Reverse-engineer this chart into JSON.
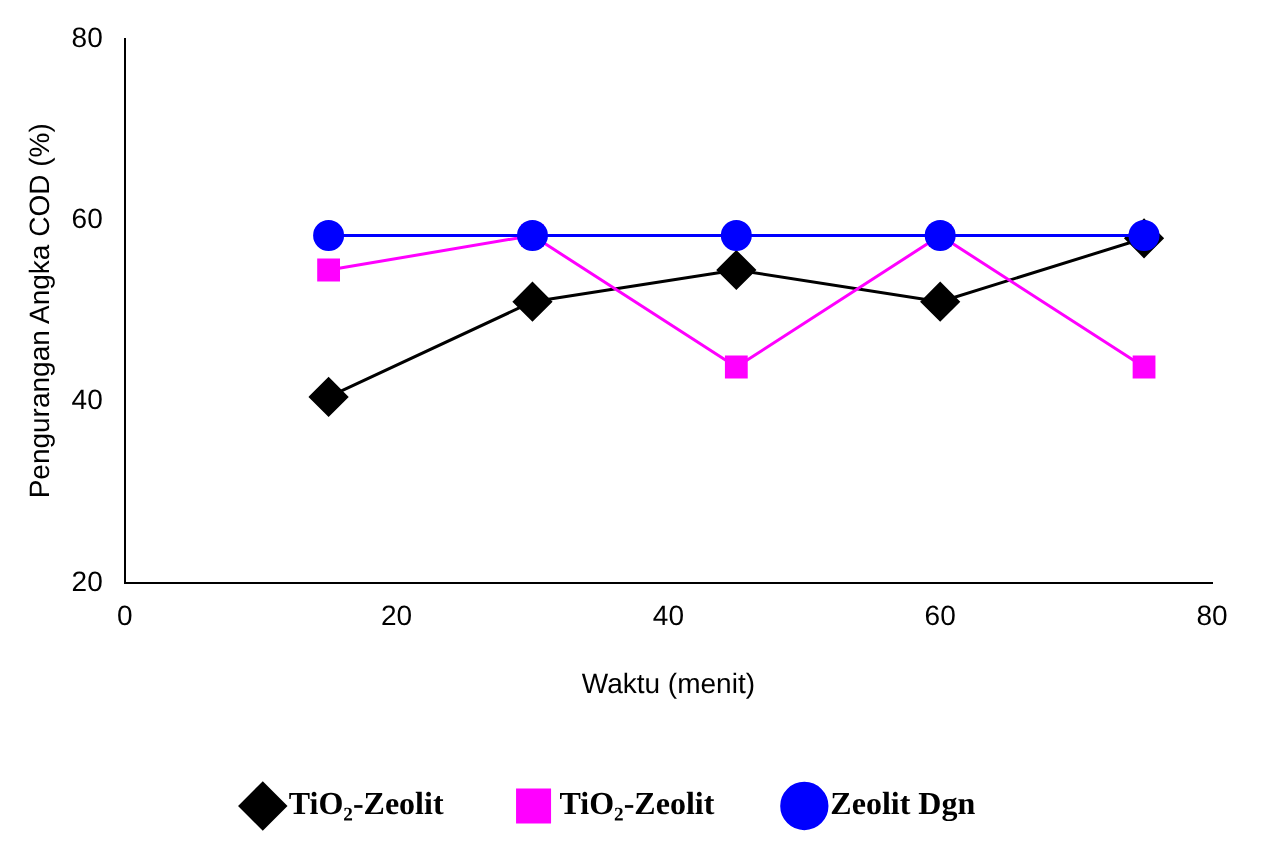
{
  "chart_data": {
    "type": "line",
    "xlabel": "Waktu (menit)",
    "ylabel": "Pengurangan Angka COD (%)",
    "x": [
      15,
      30,
      45,
      60,
      75
    ],
    "series": [
      {
        "name": "TiO₂-Zeolit",
        "color": "#000000",
        "marker": "diamond",
        "values": [
          40.5,
          51,
          54.5,
          51,
          58
        ]
      },
      {
        "name": "TiO₂-Zeolit",
        "color": "#ff00ff",
        "marker": "square",
        "values": [
          54.5,
          58.3,
          43.8,
          58.3,
          43.8
        ]
      },
      {
        "name": "Zeolit Dgn",
        "color": "#0000ff",
        "marker": "circle",
        "values": [
          58.3,
          58.3,
          58.3,
          58.3,
          58.3
        ]
      }
    ],
    "xlim": [
      0,
      80
    ],
    "xticks": [
      0,
      20,
      40,
      60,
      80
    ],
    "ylim": [
      20,
      80
    ],
    "yticks": [
      20,
      40,
      60,
      80
    ],
    "grid": false,
    "legend": "bottom"
  }
}
